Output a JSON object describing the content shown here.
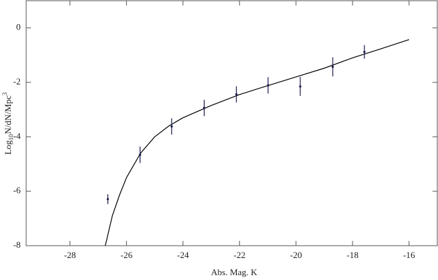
{
  "chart_data": {
    "type": "scatter",
    "xlabel": "Abs. Mag. K",
    "ylabel": [
      "Log",
      "10",
      "N/dN/Mpc",
      "3"
    ],
    "xlim": [
      -29.55,
      -15
    ],
    "ylim": [
      -8,
      1
    ],
    "xticks": [
      -28,
      -26,
      -24,
      -22,
      -20,
      -18,
      -16
    ],
    "yticks": [
      -8,
      -6,
      -4,
      -2,
      0
    ],
    "points": {
      "color": "#1a1a4a",
      "x": [
        -26.66,
        -25.52,
        -24.4,
        -23.25,
        -22.11,
        -20.99,
        -19.85,
        -18.7,
        -17.58
      ],
      "values": [
        -6.29,
        -4.66,
        -3.62,
        -2.94,
        -2.44,
        -2.11,
        -2.15,
        -1.43,
        -0.88
      ],
      "errors": [
        0.18,
        0.3,
        0.3,
        0.3,
        0.3,
        0.3,
        0.35,
        0.35,
        0.25
      ]
    },
    "fit": {
      "color": "#000000",
      "x": [
        -26.75,
        -26.5,
        -26.25,
        -26,
        -25.5,
        -25,
        -24.5,
        -24,
        -23,
        -22,
        -21,
        -20,
        -19,
        -18,
        -17,
        -16
      ],
      "values": [
        -8,
        -6.9,
        -6.15,
        -5.5,
        -4.6,
        -4.0,
        -3.6,
        -3.3,
        -2.85,
        -2.45,
        -2.12,
        -1.8,
        -1.48,
        -1.1,
        -0.77,
        -0.43
      ]
    }
  }
}
